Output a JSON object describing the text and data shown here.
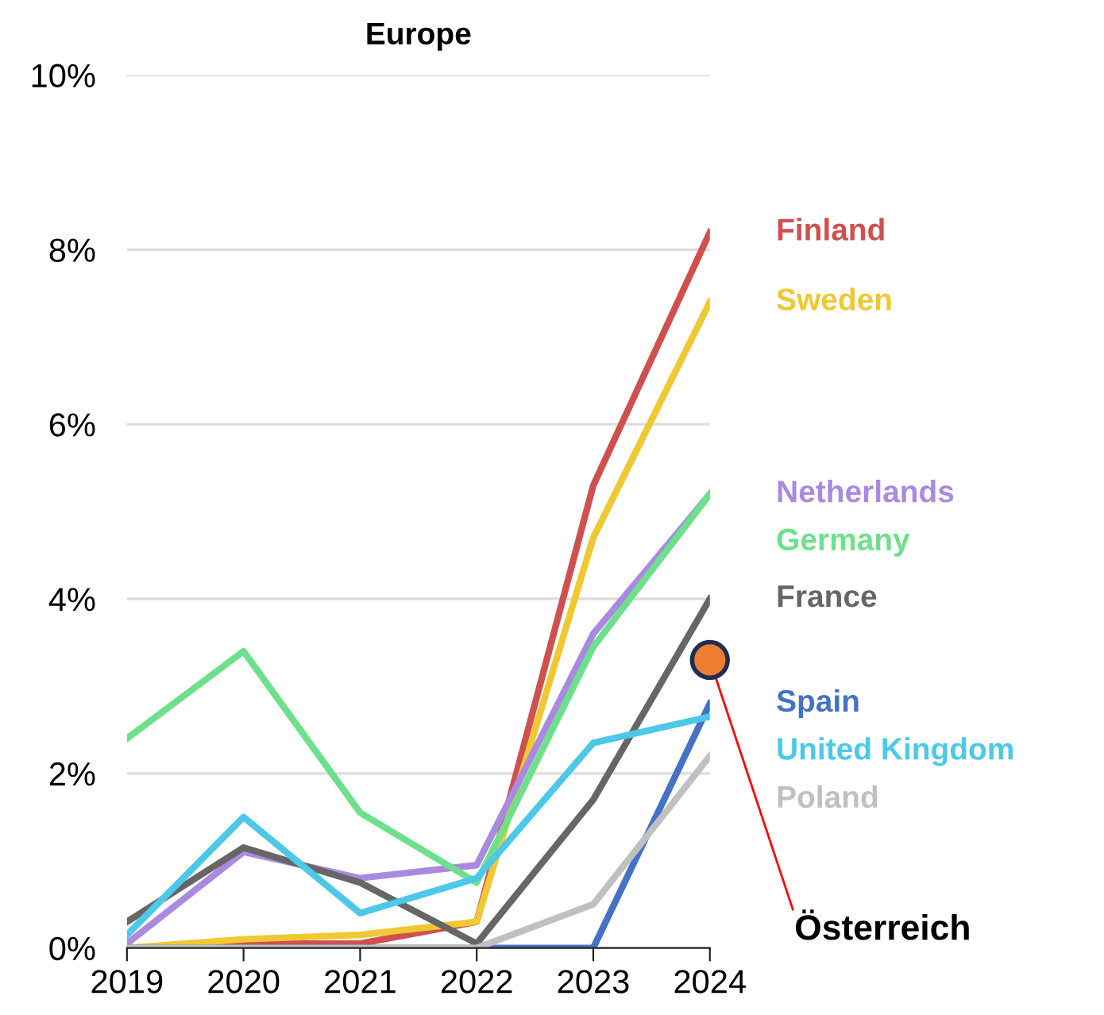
{
  "chart_data": {
    "type": "line",
    "title": "Europe",
    "x": [
      2019,
      2020,
      2021,
      2022,
      2023,
      2024
    ],
    "series": [
      {
        "name": "Finland",
        "color": "#d0504f",
        "values": [
          0,
          0.05,
          0.05,
          0.3,
          5.3,
          8.2
        ]
      },
      {
        "name": "Sweden",
        "color": "#f0c832",
        "values": [
          0,
          0.1,
          0.15,
          0.3,
          4.7,
          7.4
        ]
      },
      {
        "name": "Netherlands",
        "color": "#a98ae0",
        "values": [
          0.05,
          1.1,
          0.8,
          0.95,
          3.6,
          5.2
        ]
      },
      {
        "name": "Germany",
        "color": "#6ee08c",
        "values": [
          2.4,
          3.4,
          1.55,
          0.75,
          3.45,
          5.2
        ]
      },
      {
        "name": "France",
        "color": "#666666",
        "values": [
          0.3,
          1.15,
          0.75,
          0.05,
          1.7,
          4.0
        ]
      },
      {
        "name": "Spain",
        "color": "#4472c4",
        "values": [
          0,
          0,
          0,
          0,
          0,
          2.8
        ]
      },
      {
        "name": "United Kingdom",
        "color": "#4cc8e8",
        "values": [
          0.15,
          1.5,
          0.4,
          0.8,
          2.35,
          2.65
        ]
      },
      {
        "name": "Poland",
        "color": "#c0c0c0",
        "values": [
          0,
          0,
          0,
          0,
          0.5,
          2.2
        ]
      },
      {
        "type": "scatter",
        "color": "#ed7d31",
        "x": [
          2024
        ],
        "values": [
          3.3
        ],
        "marker": "circle"
      }
    ],
    "annotations": [
      {
        "text": "Österreich",
        "x": 2024,
        "y": 3.3
      }
    ],
    "xlim": [
      2019,
      2024
    ],
    "xticks": [
      2019,
      2020,
      2021,
      2022,
      2023,
      2024
    ],
    "ylim": [
      0,
      10
    ],
    "yticks": [
      {
        "value": 0,
        "label": "0%"
      },
      {
        "value": 2,
        "label": "2%"
      },
      {
        "value": 4,
        "label": "4%"
      },
      {
        "value": 6,
        "label": "6%"
      },
      {
        "value": 8,
        "label": "8%"
      },
      {
        "value": 10,
        "label": "10%"
      }
    ],
    "grid": "y",
    "marker": "none",
    "line_style": "solid"
  }
}
